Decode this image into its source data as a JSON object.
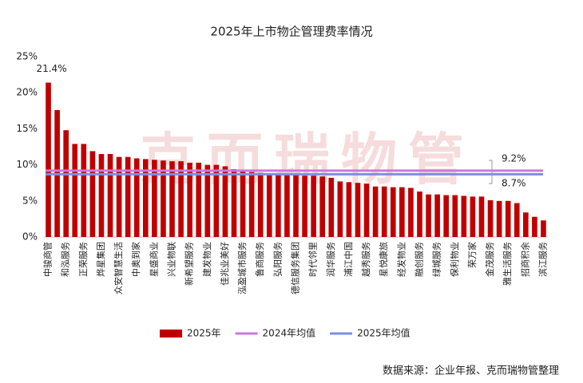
{
  "chart_data": {
    "type": "bar",
    "title": "2025年上市物企管理费率情况",
    "watermark": "克而瑞物管",
    "source": "数据来源：企业年报、克而瑞物管整理",
    "categories": [
      "中骏商管",
      null,
      "和泓服务",
      null,
      "正荣服务",
      null,
      "烨星集团",
      null,
      "众安智慧生活",
      null,
      "中奥到家",
      null,
      "星盛商业",
      null,
      "兴业物联",
      null,
      "新希望服务",
      null,
      "建发物业",
      null,
      "佳兆业美好",
      null,
      "泓盈城市服务",
      null,
      "鲁商服务",
      null,
      "弘阳服务",
      null,
      "德信服务集团",
      null,
      "时代邻里",
      null,
      "润华服务",
      null,
      "浦江中国",
      null,
      "越秀服务",
      null,
      "星悦康旅",
      null,
      "经发物业",
      null,
      "融创服务",
      null,
      "绿城服务",
      null,
      "保利物业",
      null,
      "荣万家",
      null,
      "金茂服务",
      null,
      "雅生活服务",
      null,
      "招商积余",
      null,
      "滨江服务"
    ],
    "series": [
      {
        "name": "2025年",
        "color": "#c00000",
        "values": [
          21.4,
          17.6,
          14.8,
          12.9,
          12.9,
          11.9,
          11.5,
          11.5,
          11.1,
          11.1,
          10.9,
          10.8,
          10.7,
          10.6,
          10.5,
          10.5,
          10.3,
          10.3,
          10.0,
          10.0,
          9.8,
          9.4,
          9.2,
          9.0,
          8.9,
          8.8,
          8.7,
          8.6,
          8.6,
          8.5,
          8.5,
          8.4,
          8.2,
          7.7,
          7.6,
          7.5,
          7.4,
          7.0,
          7.0,
          6.9,
          6.9,
          6.8,
          6.3,
          5.9,
          5.9,
          5.8,
          5.8,
          5.7,
          5.6,
          5.6,
          5.1,
          5.0,
          5.0,
          4.7,
          3.4,
          2.8,
          2.3
        ],
        "value_labels": [
          "21.4%",
          null,
          null,
          null,
          null,
          null,
          null,
          null,
          null,
          null,
          null,
          null,
          null,
          null,
          null,
          null,
          null,
          null,
          null,
          null,
          null,
          null,
          null,
          null,
          null,
          null,
          null,
          null,
          null,
          null,
          null,
          null,
          null,
          null,
          null,
          null,
          null,
          null,
          null,
          null,
          null,
          null,
          null,
          null,
          null,
          null,
          null,
          null,
          null,
          null,
          null,
          null,
          null,
          null,
          null,
          null,
          null
        ]
      }
    ],
    "reference_lines": [
      {
        "name": "2024年均值",
        "color": "#cc77e0",
        "value": 9.2,
        "value_label": "9.2%"
      },
      {
        "name": "2025年均值",
        "color": "#7b8ee6",
        "value": 8.7,
        "value_label": "8.7%"
      }
    ],
    "ylim": [
      0,
      25
    ],
    "yticks": [
      {
        "value": 0,
        "label": "0%"
      },
      {
        "value": 5,
        "label": "5%"
      },
      {
        "value": 10,
        "label": "10%"
      },
      {
        "value": 15,
        "label": "15%"
      },
      {
        "value": 20,
        "label": "20%"
      },
      {
        "value": 25,
        "label": "25%"
      }
    ],
    "legend": "bottom"
  }
}
